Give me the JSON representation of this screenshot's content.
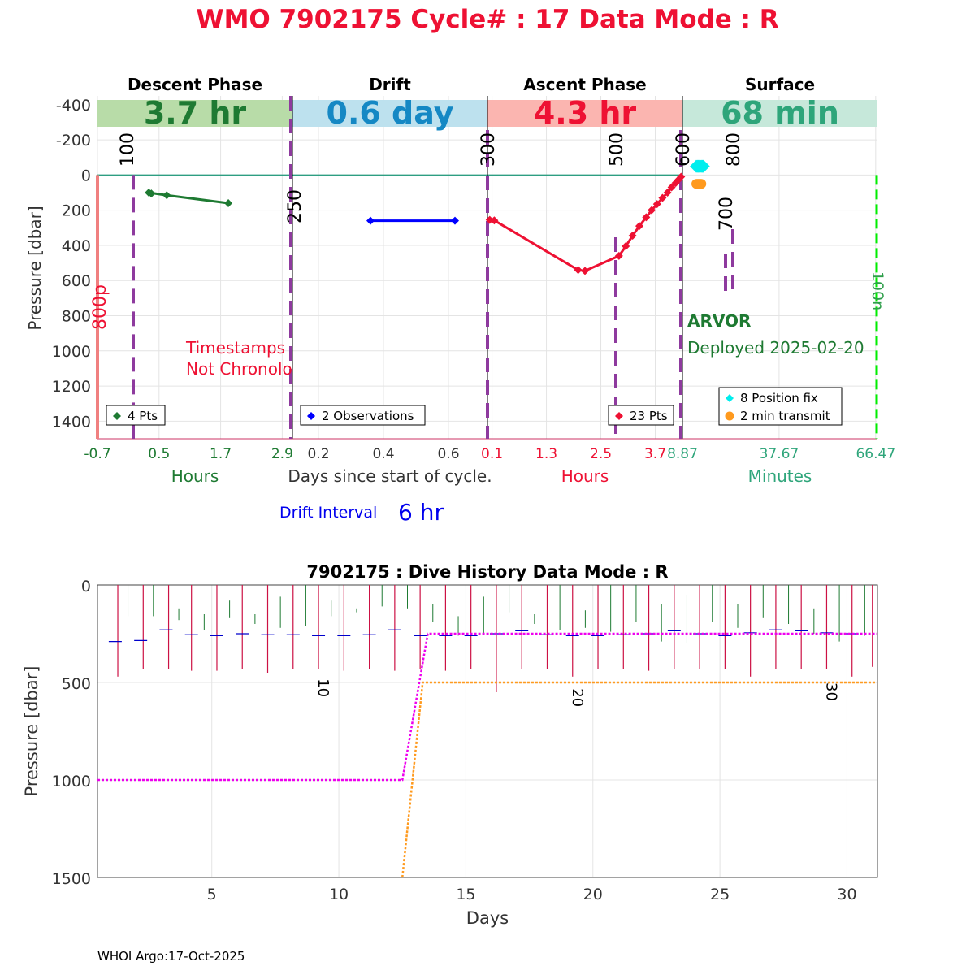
{
  "header": {
    "title": "WMO 7902175   Cycle# : 17   Data Mode : R",
    "title_color": "#EE1133"
  },
  "footer": {
    "text": "WHOI Argo:17-Oct-2025"
  },
  "colors": {
    "descent": "#1E7A32",
    "descent_band": "#B8DCA8",
    "drift": "#0000FF",
    "drift_band": "#BDE1EE",
    "drift_title": "#1588C4",
    "ascent": "#EE1133",
    "ascent_band": "#FBB5B0",
    "surface": "#2EA57A",
    "surface_band": "#C6E8DA",
    "position_fix": "#00EEEE",
    "transmit": "#FF9A1E",
    "marker_purple": "#8E3A9E",
    "bottom_dash": "#00EE00",
    "left_bar": "#F08080",
    "surface_line": "#2E9E82"
  },
  "chart_data": [
    {
      "type": "line",
      "title": "WMO 7902175   Cycle# : 17   Data Mode : R",
      "ylabel": "Pressure [dbar]",
      "xlabel": "Days since start of cycle.",
      "ylim": [
        -450,
        1500
      ],
      "y_reversed": true,
      "y_ticks": [
        "-400",
        "-200",
        "0",
        "200",
        "400",
        "600",
        "800",
        "1000",
        "1200",
        "1400"
      ],
      "panels": [
        {
          "name": "Descent Phase",
          "band_text": "3.7 hr",
          "unit_label": "Hours",
          "x_ticks": [
            "-0.7",
            "0.5",
            "1.7",
            "2.9"
          ],
          "xlim": [
            -0.7,
            3.1
          ],
          "legend": "4 Pts",
          "x": [
            0.3,
            0.65,
            1.85
          ],
          "y": [
            100,
            115,
            160
          ],
          "markers_x": [
            0.3,
            0.35,
            0.65,
            1.85
          ],
          "markers_y": [
            100,
            105,
            115,
            160
          ]
        },
        {
          "name": "Drift",
          "band_text": "0.6 day",
          "unit_label": "",
          "x_ticks": [
            "0.2",
            "0.4",
            "0.6"
          ],
          "xlim": [
            0.12,
            0.72
          ],
          "legend": "2 Observations",
          "x": [
            0.36,
            0.62
          ],
          "y": [
            260,
            260
          ]
        },
        {
          "name": "Ascent Phase",
          "band_text": "4.3 hr",
          "unit_label": "Hours",
          "x_ticks": [
            "0.1",
            "1.3",
            "2.5",
            "3.7"
          ],
          "xlim": [
            0.0,
            4.3
          ],
          "legend": "23 Pts",
          "x": [
            0.05,
            0.15,
            2.0,
            2.15,
            2.9,
            3.05,
            3.2,
            3.35,
            3.5,
            3.62,
            3.74,
            3.86,
            3.97,
            4.06,
            4.15,
            4.22,
            4.27
          ],
          "y": [
            255,
            258,
            540,
            545,
            460,
            405,
            345,
            290,
            240,
            200,
            165,
            130,
            100,
            70,
            45,
            25,
            10
          ]
        },
        {
          "name": "Surface",
          "band_text": "68 min",
          "unit_label": "Minutes",
          "x_ticks": [
            "8.87",
            "37.67",
            "66.47"
          ],
          "xlim": [
            8.87,
            67.0
          ],
          "legend_position_fix": "8 Position fix",
          "legend_transmit": "2 min transmit",
          "position_fix_minutes": [
            13.0,
            13.3,
            13.6,
            13.9,
            14.2,
            14.5,
            14.8,
            15.1
          ],
          "position_fix_pressure": [
            -50,
            -50,
            -50,
            -50,
            -50,
            -50,
            -50,
            -50
          ],
          "transmit_minutes": [
            13.0,
            13.3,
            13.6,
            13.9,
            14.2,
            14.5
          ],
          "transmit_pressure": [
            50,
            50,
            50,
            50,
            50,
            50
          ]
        }
      ],
      "vertical_markers": [
        "100",
        "250",
        "300",
        "500",
        "600",
        "800",
        "700"
      ],
      "side_labels": {
        "left": "800p",
        "right": "100n"
      },
      "annotation": "Timestamps\nNot Chronological",
      "float_type": "ARVOR",
      "deployed": "Deployed 2025-02-20",
      "drift_interval_label": "Drift Interval",
      "drift_interval_value": "6 hr"
    },
    {
      "type": "line",
      "title": "7902175 : Dive History      Data Mode : R",
      "xlabel": "Days",
      "ylabel": "Pressure [dbar]",
      "xlim": [
        0.5,
        31.2
      ],
      "ylim": [
        0,
        1500
      ],
      "y_reversed": true,
      "x_ticks": [
        5,
        10,
        15,
        20,
        25,
        30
      ],
      "y_ticks": [
        0,
        500,
        1000,
        1500
      ],
      "cycle_labels": [
        {
          "label": "10",
          "day": 9.2,
          "pressure": 480
        },
        {
          "label": "20",
          "day": 19.2,
          "pressure": 530
        },
        {
          "label": "30",
          "day": 29.2,
          "pressure": 500
        }
      ],
      "series": [
        {
          "name": "",
          "style": "dotted",
          "color": "#EE00EE",
          "x": [
            0.5,
            12.5,
            13.5,
            31.2
          ],
          "y": [
            1000,
            1000,
            250,
            250
          ]
        },
        {
          "name": "",
          "style": "dotted",
          "color": "#FF9A1E",
          "x": [
            12.5,
            13.3,
            31.2
          ],
          "y": [
            1500,
            500,
            500
          ]
        }
      ],
      "red_spikes_x": [
        1.3,
        2.3,
        3.3,
        4.2,
        5.2,
        6.2,
        7.2,
        8.2,
        9.2,
        10.2,
        11.2,
        12.2,
        13.2,
        14.2,
        15.2,
        16.2,
        17.2,
        18.2,
        19.2,
        20.2,
        21.2,
        22.2,
        23.2,
        24.2,
        25.2,
        26.2,
        27.2,
        28.2,
        29.2,
        30.2,
        31.0
      ],
      "red_spikes_y": [
        470,
        430,
        430,
        440,
        440,
        430,
        450,
        430,
        430,
        440,
        430,
        440,
        430,
        440,
        430,
        550,
        430,
        430,
        470,
        430,
        430,
        440,
        430,
        430,
        430,
        470,
        430,
        430,
        430,
        470,
        420
      ],
      "green_spikes_x": [
        0.6,
        1.7,
        2.7,
        3.7,
        4.7,
        5.7,
        6.7,
        7.7,
        8.7,
        9.7,
        10.7,
        11.7,
        12.7,
        13.7,
        14.7,
        15.7,
        16.7,
        17.7,
        18.7,
        19.7,
        20.7,
        21.7,
        22.7,
        23.7,
        24.7,
        25.7,
        26.7,
        27.7,
        28.7,
        29.7,
        30.7
      ],
      "green_spikes_top": [
        130,
        0,
        0,
        120,
        150,
        80,
        150,
        60,
        0,
        80,
        120,
        0,
        0,
        100,
        160,
        60,
        0,
        150,
        0,
        130,
        0,
        0,
        100,
        50,
        0,
        100,
        0,
        0,
        120,
        0,
        0
      ],
      "green_spikes_bottom": [
        130,
        160,
        160,
        180,
        230,
        170,
        200,
        220,
        210,
        160,
        140,
        110,
        120,
        190,
        260,
        250,
        140,
        200,
        230,
        220,
        240,
        190,
        290,
        300,
        190,
        220,
        170,
        200,
        250,
        290,
        260
      ],
      "blue_ticks_x": [
        1.2,
        2.2,
        3.2,
        4.2,
        5.2,
        6.2,
        7.2,
        8.2,
        9.2,
        10.2,
        11.2,
        12.2,
        13.2,
        14.2,
        15.2,
        16.2,
        17.2,
        18.2,
        19.2,
        20.2,
        21.2,
        22.2,
        23.2,
        24.2,
        25.2,
        26.2,
        27.2,
        28.2,
        29.2,
        30.2
      ],
      "blue_ticks_y": [
        290,
        285,
        230,
        255,
        260,
        250,
        255,
        255,
        260,
        260,
        255,
        230,
        260,
        260,
        260,
        250,
        235,
        255,
        260,
        260,
        255,
        250,
        235,
        250,
        260,
        245,
        230,
        235,
        245,
        250
      ]
    }
  ]
}
